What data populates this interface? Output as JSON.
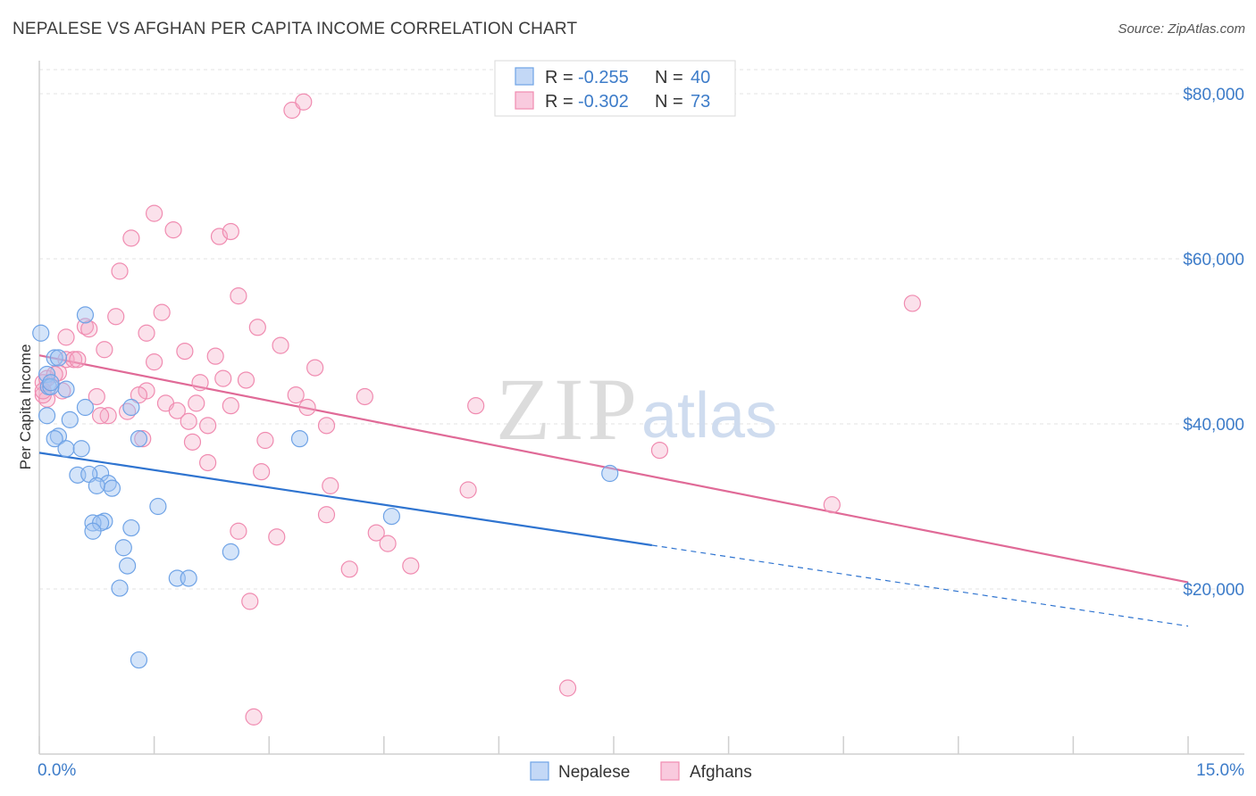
{
  "title": "NEPALESE VS AFGHAN PER CAPITA INCOME CORRELATION CHART",
  "source": "Source: ZipAtlas.com",
  "watermark": {
    "zip": "ZIP",
    "atlas": "atlas"
  },
  "legend": {
    "rows": [
      {
        "r_label": "R = ",
        "r_value": "-0.255",
        "n_label": "N = ",
        "n_value": "40",
        "color": "#6fa3e6"
      },
      {
        "r_label": "R = ",
        "r_value": "-0.302",
        "n_label": "N = ",
        "n_value": "73",
        "color": "#f08bb0"
      }
    ]
  },
  "chart_data": {
    "type": "scatter",
    "title": "NEPALESE VS AFGHAN PER CAPITA INCOME CORRELATION CHART",
    "xlabel": "",
    "ylabel": "Per Capita Income",
    "xlim": [
      0,
      15
    ],
    "ylim": [
      0,
      84000
    ],
    "x_tick_labels": [
      "0.0%",
      "15.0%"
    ],
    "y_tick_values": [
      20000,
      40000,
      60000,
      80000
    ],
    "y_tick_labels": [
      "$20,000",
      "$40,000",
      "$60,000",
      "$80,000"
    ],
    "series": [
      {
        "name": "Nepalese",
        "color": "#6fa3e6",
        "line_color": "#2f74d0",
        "trend": {
          "x0": 0,
          "y0": 36500,
          "x1": 8.0,
          "y1": 25300,
          "dash_to_x": 15,
          "dash_to_y": 15500
        },
        "points": [
          [
            0.02,
            51000
          ],
          [
            0.6,
            53200
          ],
          [
            0.2,
            48000
          ],
          [
            0.25,
            48000
          ],
          [
            0.1,
            46000
          ],
          [
            0.12,
            44500
          ],
          [
            0.35,
            44200
          ],
          [
            0.6,
            42000
          ],
          [
            1.2,
            42000
          ],
          [
            0.1,
            41000
          ],
          [
            0.4,
            40500
          ],
          [
            0.25,
            38500
          ],
          [
            0.2,
            38200
          ],
          [
            1.3,
            38200
          ],
          [
            3.4,
            38200
          ],
          [
            0.35,
            37000
          ],
          [
            0.55,
            37000
          ],
          [
            0.5,
            33800
          ],
          [
            0.8,
            34000
          ],
          [
            0.65,
            33900
          ],
          [
            0.9,
            32800
          ],
          [
            0.75,
            32500
          ],
          [
            0.95,
            32200
          ],
          [
            1.55,
            30000
          ],
          [
            4.6,
            28800
          ],
          [
            1.2,
            27400
          ],
          [
            0.85,
            28200
          ],
          [
            0.7,
            28000
          ],
          [
            0.8,
            28000
          ],
          [
            0.7,
            27000
          ],
          [
            1.1,
            25000
          ],
          [
            2.5,
            24500
          ],
          [
            1.15,
            22800
          ],
          [
            1.8,
            21300
          ],
          [
            1.95,
            21300
          ],
          [
            1.05,
            20100
          ],
          [
            1.3,
            11400
          ],
          [
            7.45,
            34000
          ],
          [
            0.15,
            44500
          ],
          [
            0.15,
            45000
          ]
        ]
      },
      {
        "name": "Afghans",
        "color": "#f08bb0",
        "line_color": "#e06a97",
        "trend": {
          "x0": 0,
          "y0": 48300,
          "x1": 15,
          "y1": 20800
        },
        "points": [
          [
            3.3,
            78000
          ],
          [
            3.45,
            79000
          ],
          [
            1.5,
            65500
          ],
          [
            1.75,
            63500
          ],
          [
            1.2,
            62500
          ],
          [
            2.35,
            62700
          ],
          [
            2.5,
            63300
          ],
          [
            1.05,
            58500
          ],
          [
            2.6,
            55500
          ],
          [
            11.4,
            54600
          ],
          [
            1.6,
            53500
          ],
          [
            1.0,
            53000
          ],
          [
            0.6,
            51800
          ],
          [
            0.65,
            51500
          ],
          [
            2.85,
            51700
          ],
          [
            1.4,
            51000
          ],
          [
            0.35,
            50500
          ],
          [
            3.15,
            49500
          ],
          [
            0.85,
            49000
          ],
          [
            1.9,
            48800
          ],
          [
            0.35,
            47800
          ],
          [
            0.45,
            47800
          ],
          [
            0.5,
            47800
          ],
          [
            2.3,
            48200
          ],
          [
            1.5,
            47500
          ],
          [
            3.6,
            46800
          ],
          [
            0.25,
            46200
          ],
          [
            2.4,
            45500
          ],
          [
            2.7,
            45300
          ],
          [
            2.1,
            45000
          ],
          [
            0.05,
            45000
          ],
          [
            0.3,
            44000
          ],
          [
            1.4,
            44000
          ],
          [
            1.3,
            43500
          ],
          [
            0.1,
            43000
          ],
          [
            0.75,
            43300
          ],
          [
            3.35,
            43500
          ],
          [
            4.25,
            43300
          ],
          [
            0.05,
            43500
          ],
          [
            1.65,
            42500
          ],
          [
            2.05,
            42500
          ],
          [
            2.5,
            42200
          ],
          [
            3.5,
            42000
          ],
          [
            5.7,
            42200
          ],
          [
            1.15,
            41500
          ],
          [
            1.8,
            41600
          ],
          [
            0.9,
            41000
          ],
          [
            0.8,
            41000
          ],
          [
            1.95,
            40300
          ],
          [
            2.2,
            39800
          ],
          [
            3.75,
            39800
          ],
          [
            1.35,
            38200
          ],
          [
            2.95,
            38000
          ],
          [
            2.0,
            37800
          ],
          [
            8.1,
            36800
          ],
          [
            2.2,
            35300
          ],
          [
            2.9,
            34200
          ],
          [
            3.8,
            32500
          ],
          [
            5.6,
            32000
          ],
          [
            10.35,
            30200
          ],
          [
            3.75,
            29000
          ],
          [
            2.6,
            27000
          ],
          [
            3.1,
            26300
          ],
          [
            4.4,
            26800
          ],
          [
            4.55,
            25500
          ],
          [
            4.05,
            22400
          ],
          [
            4.85,
            22800
          ],
          [
            2.75,
            18500
          ],
          [
            6.9,
            8000
          ],
          [
            2.8,
            4500
          ],
          [
            0.1,
            45500
          ],
          [
            0.2,
            46000
          ],
          [
            0.05,
            44000
          ]
        ]
      }
    ]
  }
}
